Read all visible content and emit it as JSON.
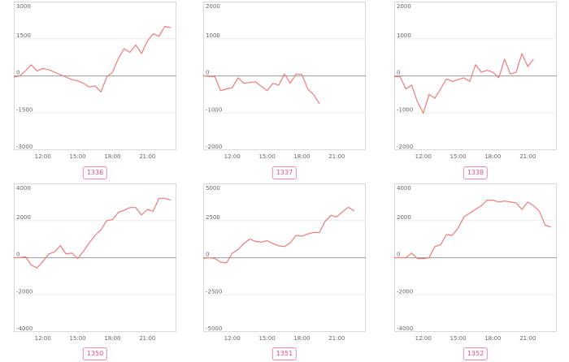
{
  "theme": {
    "line_color": "#f07b7b",
    "frame_color": "#d9d9d9",
    "grid_color": "#ececec",
    "zero_line_color": "#9e9e9e",
    "tag_color": "#e2517e"
  },
  "chart_data": [
    {
      "type": "line",
      "label": "1336",
      "xticks": [
        "12:00",
        "15:00",
        "18:00",
        "21:00"
      ],
      "yticks": [
        3000,
        1500,
        0,
        -1500,
        -3000
      ],
      "ylim": [
        -3000,
        3000
      ],
      "xlim": [
        9.5,
        23.5
      ],
      "x": [
        9.5,
        10.0,
        10.5,
        11.0,
        11.5,
        12.0,
        12.5,
        13.0,
        13.5,
        14.0,
        14.5,
        15.0,
        15.5,
        16.0,
        16.5,
        17.0,
        17.5,
        18.0,
        18.5,
        19.0,
        19.5,
        20.0,
        20.5,
        21.0,
        21.5,
        22.0,
        22.5,
        23.0
      ],
      "y": [
        -50,
        0,
        200,
        450,
        200,
        300,
        250,
        150,
        50,
        -50,
        -150,
        -200,
        -300,
        -450,
        -400,
        -650,
        -50,
        150,
        700,
        1100,
        950,
        1250,
        900,
        1400,
        1700,
        1600,
        2000,
        1950
      ]
    },
    {
      "type": "line",
      "label": "1337",
      "xticks": [
        "12:00",
        "15:00",
        "18:00",
        "21:00"
      ],
      "yticks": [
        2000,
        1000,
        0,
        -1000,
        -2000
      ],
      "ylim": [
        -2000,
        2000
      ],
      "xlim": [
        9.5,
        23.5
      ],
      "x": [
        9.5,
        10.0,
        10.5,
        11.0,
        11.5,
        12.0,
        12.5,
        13.0,
        13.5,
        14.0,
        14.5,
        15.0,
        15.5,
        16.0,
        16.5,
        17.0,
        17.5,
        18.0,
        18.5,
        19.0,
        19.5
      ],
      "y": [
        0,
        -10,
        -20,
        -400,
        -350,
        -320,
        -50,
        -200,
        -180,
        -160,
        -280,
        -400,
        -200,
        -250,
        50,
        -200,
        50,
        40,
        -350,
        -500,
        -750
      ]
    },
    {
      "type": "line",
      "label": "1338",
      "xticks": [
        "12:00",
        "15:00",
        "18:00",
        "21:00"
      ],
      "yticks": [
        2000,
        1000,
        0,
        -1000,
        -2000
      ],
      "ylim": [
        -2000,
        2000
      ],
      "xlim": [
        9.5,
        23.5
      ],
      "x": [
        9.5,
        10.0,
        10.5,
        11.0,
        11.5,
        12.0,
        12.5,
        13.0,
        13.5,
        14.0,
        14.5,
        15.0,
        15.5,
        16.0,
        16.5,
        17.0,
        17.5,
        18.0,
        18.5,
        19.0,
        19.5,
        20.0,
        20.5,
        21.0,
        21.5
      ],
      "y": [
        -20,
        -20,
        -350,
        -250,
        -700,
        -1000,
        -500,
        -600,
        -350,
        -80,
        -150,
        -100,
        -50,
        -150,
        300,
        100,
        150,
        100,
        -50,
        450,
        50,
        100,
        600,
        250,
        450
      ]
    },
    {
      "type": "line",
      "label": "1350",
      "xticks": [
        "12:00",
        "15:00",
        "18:00",
        "21:00"
      ],
      "yticks": [
        4000,
        2000,
        0,
        -2000,
        -4000
      ],
      "ylim": [
        -4000,
        4000
      ],
      "xlim": [
        9.5,
        23.5
      ],
      "x": [
        9.5,
        10.0,
        10.5,
        11.0,
        11.5,
        12.0,
        12.5,
        13.0,
        13.5,
        14.0,
        14.5,
        15.0,
        15.5,
        16.0,
        16.5,
        17.0,
        17.5,
        18.0,
        18.5,
        19.0,
        19.5,
        20.0,
        20.5,
        21.0,
        21.5,
        22.0,
        22.5,
        23.0
      ],
      "y": [
        0,
        0,
        50,
        -400,
        -550,
        -200,
        200,
        300,
        650,
        200,
        250,
        -50,
        350,
        800,
        1200,
        1500,
        2000,
        2050,
        2450,
        2550,
        2700,
        2700,
        2300,
        2600,
        2500,
        3200,
        3200,
        3100
      ]
    },
    {
      "type": "line",
      "label": "1351",
      "xticks": [
        "12:00",
        "15:00",
        "18:00",
        "21:00"
      ],
      "yticks": [
        5000,
        2500,
        0,
        -2500,
        -5000
      ],
      "ylim": [
        -5000,
        5000
      ],
      "xlim": [
        9.5,
        23.5
      ],
      "x": [
        9.5,
        10.0,
        10.5,
        11.0,
        11.5,
        12.0,
        12.5,
        13.0,
        13.5,
        14.0,
        14.5,
        15.0,
        15.5,
        16.0,
        16.5,
        17.0,
        17.5,
        18.0,
        18.5,
        19.0,
        19.5,
        20.0,
        20.5,
        21.0,
        21.5,
        22.0,
        22.5
      ],
      "y": [
        -50,
        0,
        -50,
        -300,
        -350,
        300,
        550,
        950,
        1250,
        1100,
        1050,
        1150,
        950,
        800,
        750,
        1000,
        1500,
        1450,
        1600,
        1700,
        1700,
        2450,
        2850,
        2750,
        3100,
        3400,
        3150
      ]
    },
    {
      "type": "line",
      "label": "1352",
      "xticks": [
        "12:00",
        "15:00",
        "18:00",
        "21:00"
      ],
      "yticks": [
        4000,
        2000,
        0,
        -2000,
        -4000
      ],
      "ylim": [
        -4000,
        4000
      ],
      "xlim": [
        9.5,
        23.5
      ],
      "x": [
        9.5,
        10.0,
        10.5,
        11.0,
        11.5,
        12.0,
        12.5,
        13.0,
        13.5,
        14.0,
        14.5,
        15.0,
        15.5,
        16.0,
        16.5,
        17.0,
        17.5,
        18.0,
        18.5,
        19.0,
        19.5,
        20.0,
        20.5,
        21.0,
        21.5,
        22.0,
        22.5,
        23.0
      ],
      "y": [
        0,
        0,
        0,
        250,
        -50,
        -50,
        0,
        600,
        700,
        1250,
        1200,
        1600,
        2200,
        2400,
        2600,
        2800,
        3100,
        3100,
        3000,
        3050,
        3000,
        2950,
        2600,
        3000,
        2800,
        2500,
        1750,
        1650
      ]
    }
  ]
}
